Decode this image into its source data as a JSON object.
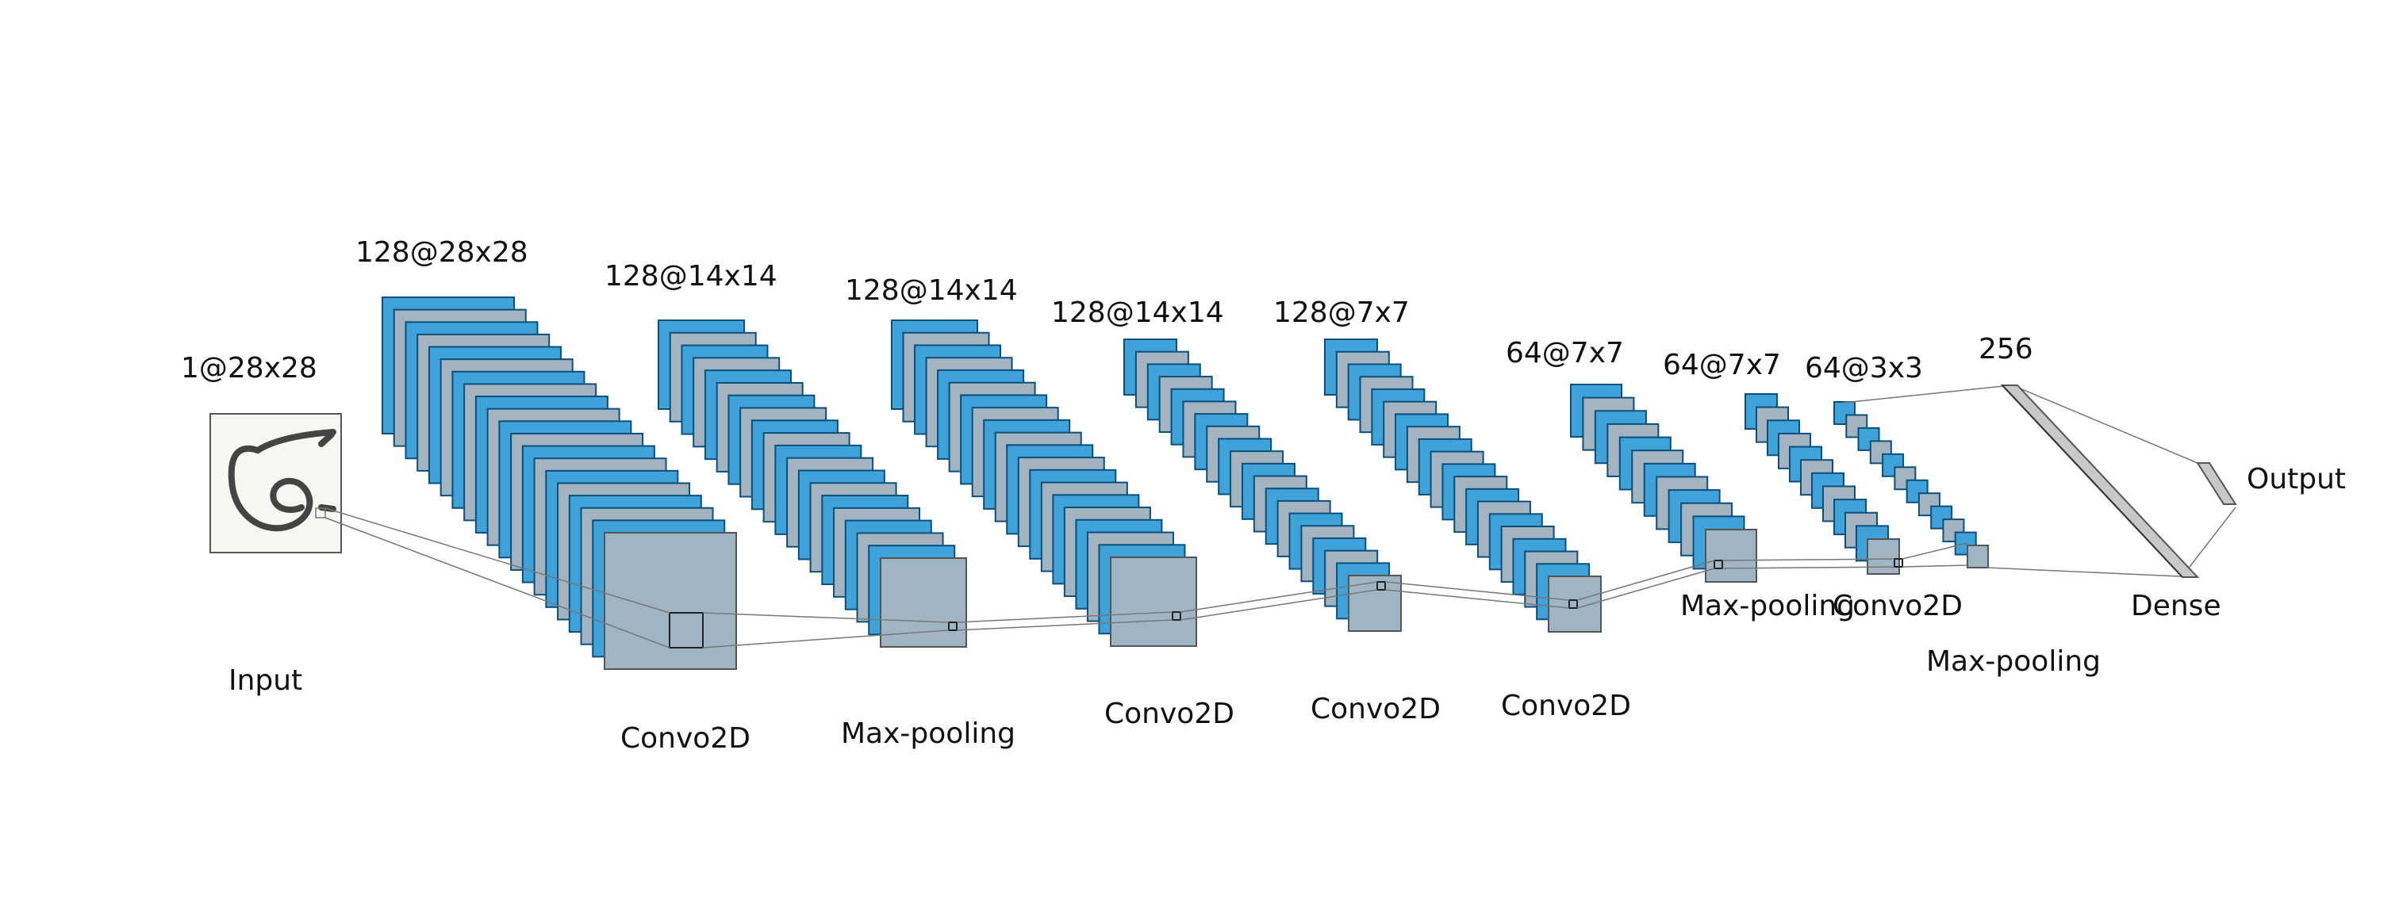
{
  "input": {
    "label": "Input",
    "dim": "1@28x28"
  },
  "layers": [
    {
      "id": "conv1",
      "dim": "128@28x28",
      "name": "Convo2D",
      "maps": 20
    },
    {
      "id": "pool1",
      "dim": "128@14x14",
      "name": "Max-pooling",
      "maps": 20
    },
    {
      "id": "conv2",
      "dim": "128@14x14",
      "name": "Convo2D",
      "maps": 20
    },
    {
      "id": "conv3",
      "dim": "128@14x14",
      "name": "Convo2D",
      "maps": 20
    },
    {
      "id": "conv4",
      "dim": "128@7x7",
      "name": "Convo2D",
      "maps": 20
    },
    {
      "id": "pool2",
      "dim": "64@7x7",
      "name": "Max-pooling",
      "maps": 12
    },
    {
      "id": "conv5",
      "dim": "64@7x7",
      "name": "Convo2D",
      "maps": 12
    },
    {
      "id": "conv6",
      "dim": "64@3x3",
      "name": "Convo2D",
      "maps": 12
    },
    {
      "id": "pool3",
      "dim": "64@3x3",
      "name": "Max-pooling",
      "maps": 12
    }
  ],
  "dense": {
    "label": "Dense",
    "units": "256"
  },
  "output": {
    "label": "Output"
  },
  "colors": {
    "map_fill": "#3fa2d8",
    "map_stroke": "#0b4f7c",
    "map_gray": "#a3b3c0",
    "last_map_fill": "#9fb5c4",
    "dense_fill": "#c8c8c8",
    "input_bg": "#f6f6f2",
    "line": "#777777"
  }
}
